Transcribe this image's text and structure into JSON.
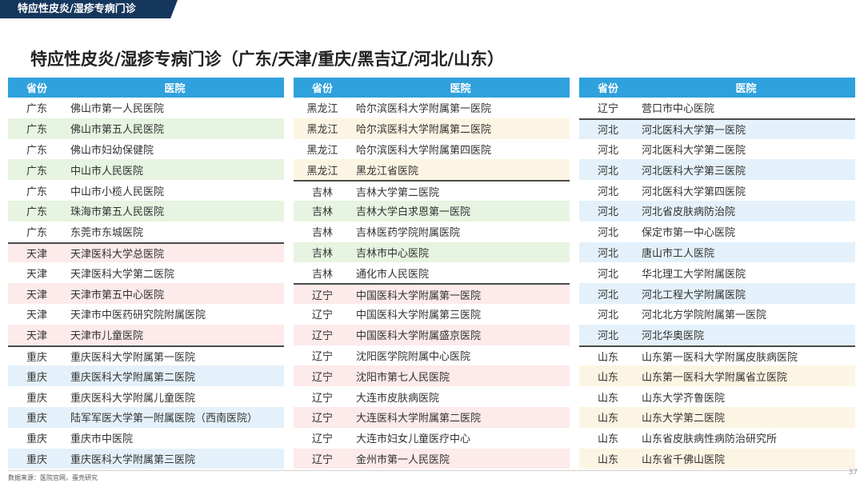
{
  "header": {
    "section_tag": "特应性皮炎/湿疹专病门诊",
    "title": "特应性皮炎/湿疹专病门诊（广东/天津/重庆/黑吉辽/河北/山东）"
  },
  "table_headers": {
    "province": "省份",
    "hospital": "医院"
  },
  "colors": {
    "header_blue": "#2fa1dc",
    "tag_navy": "#16375d",
    "green": "#e6f4e1",
    "pink": "#fdeaea",
    "blue": "#e4f1fa",
    "yellow": "#fdf5e3"
  },
  "tables": [
    {
      "rows": [
        {
          "province": "广东",
          "hospital": "佛山市第一人民医院",
          "tint": "",
          "sep": false
        },
        {
          "province": "广东",
          "hospital": "佛山市第五人民医院",
          "tint": "green",
          "sep": false
        },
        {
          "province": "广东",
          "hospital": "佛山市妇幼保健院",
          "tint": "",
          "sep": false
        },
        {
          "province": "广东",
          "hospital": "中山市人民医院",
          "tint": "green",
          "sep": false
        },
        {
          "province": "广东",
          "hospital": "中山市小榄人民医院",
          "tint": "",
          "sep": false
        },
        {
          "province": "广东",
          "hospital": "珠海市第五人民医院",
          "tint": "green",
          "sep": false
        },
        {
          "province": "广东",
          "hospital": "东莞市东城医院",
          "tint": "",
          "sep": false
        },
        {
          "province": "天津",
          "hospital": "天津医科大学总医院",
          "tint": "pink",
          "sep": true
        },
        {
          "province": "天津",
          "hospital": "天津医科大学第二医院",
          "tint": "",
          "sep": false
        },
        {
          "province": "天津",
          "hospital": "天津市第五中心医院",
          "tint": "pink",
          "sep": false
        },
        {
          "province": "天津",
          "hospital": "天津市中医药研究院附属医院",
          "tint": "",
          "sep": false
        },
        {
          "province": "天津",
          "hospital": "天津市儿童医院",
          "tint": "pink",
          "sep": false
        },
        {
          "province": "重庆",
          "hospital": "重庆医科大学附属第一医院",
          "tint": "",
          "sep": true
        },
        {
          "province": "重庆",
          "hospital": "重庆医科大学附属第二医院",
          "tint": "blue",
          "sep": false
        },
        {
          "province": "重庆",
          "hospital": "重庆医科大学附属儿童医院",
          "tint": "",
          "sep": false
        },
        {
          "province": "重庆",
          "hospital": "陆军军医大学第一附属医院（西南医院）",
          "tint": "blue",
          "sep": false
        },
        {
          "province": "重庆",
          "hospital": "重庆市中医院",
          "tint": "",
          "sep": false
        },
        {
          "province": "重庆",
          "hospital": "重庆医科大学附属第三医院",
          "tint": "blue",
          "sep": false
        }
      ]
    },
    {
      "rows": [
        {
          "province": "黑龙江",
          "hospital": "哈尔滨医科大学附属第一医院",
          "tint": "",
          "sep": false
        },
        {
          "province": "黑龙江",
          "hospital": "哈尔滨医科大学附属第二医院",
          "tint": "yellow",
          "sep": false
        },
        {
          "province": "黑龙江",
          "hospital": "哈尔滨医科大学附属第四医院",
          "tint": "",
          "sep": false
        },
        {
          "province": "黑龙江",
          "hospital": "黑龙江省医院",
          "tint": "yellow",
          "sep": false
        },
        {
          "province": "吉林",
          "hospital": "吉林大学第二医院",
          "tint": "",
          "sep": true
        },
        {
          "province": "吉林",
          "hospital": "吉林大学白求恩第一医院",
          "tint": "green",
          "sep": false
        },
        {
          "province": "吉林",
          "hospital": "吉林医药学院附属医院",
          "tint": "",
          "sep": false
        },
        {
          "province": "吉林",
          "hospital": "吉林市中心医院",
          "tint": "green",
          "sep": false
        },
        {
          "province": "吉林",
          "hospital": "通化市人民医院",
          "tint": "",
          "sep": false
        },
        {
          "province": "辽宁",
          "hospital": "中国医科大学附属第一医院",
          "tint": "pink",
          "sep": true
        },
        {
          "province": "辽宁",
          "hospital": "中国医科大学附属第三医院",
          "tint": "",
          "sep": false
        },
        {
          "province": "辽宁",
          "hospital": "中国医科大学附属盛京医院",
          "tint": "pink",
          "sep": false
        },
        {
          "province": "辽宁",
          "hospital": "沈阳医学院附属中心医院",
          "tint": "",
          "sep": false
        },
        {
          "province": "辽宁",
          "hospital": "沈阳市第七人民医院",
          "tint": "pink",
          "sep": false
        },
        {
          "province": "辽宁",
          "hospital": "大连市皮肤病医院",
          "tint": "",
          "sep": false
        },
        {
          "province": "辽宁",
          "hospital": "大连医科大学附属第二医院",
          "tint": "pink",
          "sep": false
        },
        {
          "province": "辽宁",
          "hospital": "大连市妇女儿童医疗中心",
          "tint": "",
          "sep": false
        },
        {
          "province": "辽宁",
          "hospital": "金州市第一人民医院",
          "tint": "pink",
          "sep": false
        }
      ]
    },
    {
      "rows": [
        {
          "province": "辽宁",
          "hospital": "营口市中心医院",
          "tint": "",
          "sep": false
        },
        {
          "province": "河北",
          "hospital": "河北医科大学第一医院",
          "tint": "blue",
          "sep": true
        },
        {
          "province": "河北",
          "hospital": "河北医科大学第二医院",
          "tint": "",
          "sep": false
        },
        {
          "province": "河北",
          "hospital": "河北医科大学第三医院",
          "tint": "blue",
          "sep": false
        },
        {
          "province": "河北",
          "hospital": "河北医科大学第四医院",
          "tint": "",
          "sep": false
        },
        {
          "province": "河北",
          "hospital": "河北省皮肤病防治院",
          "tint": "blue",
          "sep": false
        },
        {
          "province": "河北",
          "hospital": "保定市第一中心医院",
          "tint": "",
          "sep": false
        },
        {
          "province": "河北",
          "hospital": "唐山市工人医院",
          "tint": "blue",
          "sep": false
        },
        {
          "province": "河北",
          "hospital": "华北理工大学附属医院",
          "tint": "",
          "sep": false
        },
        {
          "province": "河北",
          "hospital": "河北工程大学附属医院",
          "tint": "blue",
          "sep": false
        },
        {
          "province": "河北",
          "hospital": "河北北方学院附属第一医院",
          "tint": "",
          "sep": false
        },
        {
          "province": "河北",
          "hospital": "河北华奥医院",
          "tint": "blue",
          "sep": false
        },
        {
          "province": "山东",
          "hospital": "山东第一医科大学附属皮肤病医院",
          "tint": "",
          "sep": true
        },
        {
          "province": "山东",
          "hospital": "山东第一医科大学附属省立医院",
          "tint": "yellow",
          "sep": false
        },
        {
          "province": "山东",
          "hospital": "山东大学齐鲁医院",
          "tint": "",
          "sep": false
        },
        {
          "province": "山东",
          "hospital": "山东大学第二医院",
          "tint": "yellow",
          "sep": false
        },
        {
          "province": "山东",
          "hospital": "山东省皮肤病性病防治研究所",
          "tint": "",
          "sep": false
        },
        {
          "province": "山东",
          "hospital": "山东省千佛山医院",
          "tint": "yellow",
          "sep": false
        }
      ]
    }
  ],
  "footer": {
    "source": "数据来源：医院官网，蛋壳研究",
    "page": "37"
  }
}
